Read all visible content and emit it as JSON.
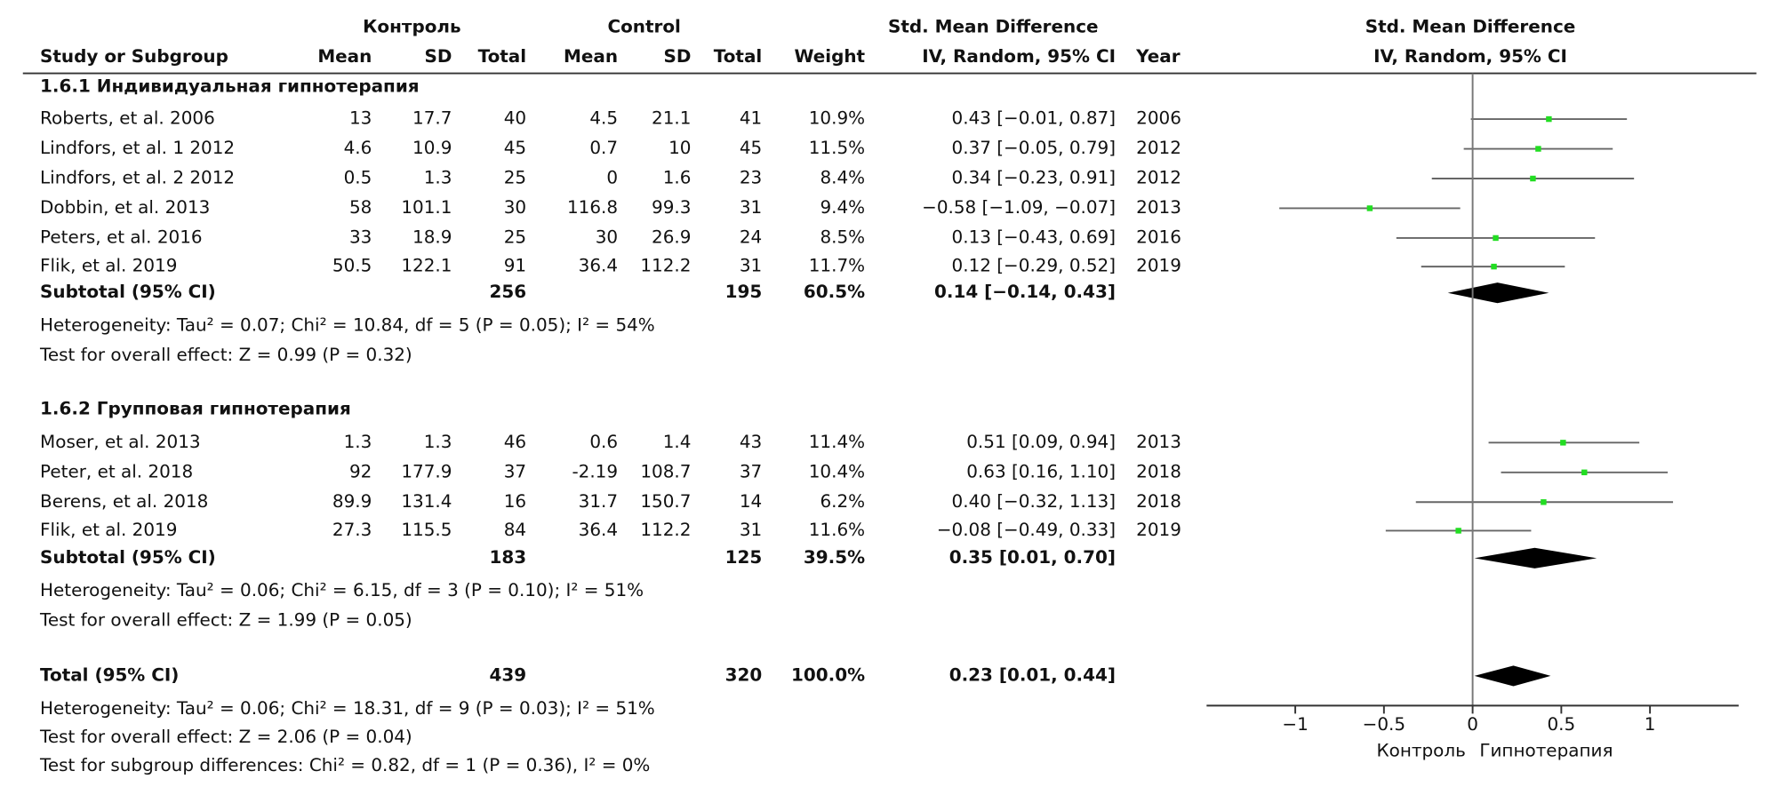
{
  "chart_data": {
    "type": "forest",
    "header": {
      "group1": "Контроль",
      "group2": "Control",
      "effect": "Std. Mean Difference",
      "plot_title": "Std. Mean Difference",
      "plot_subtitle": "IV, Random, 95% CI"
    },
    "columns": [
      "Study or Subgroup",
      "Mean",
      "SD",
      "Total",
      "Mean",
      "SD",
      "Total",
      "Weight",
      "IV, Random, 95% CI",
      "Year"
    ],
    "subgroups": [
      {
        "title": "1.6.1 Индивидуальная гипнотерапия",
        "studies": [
          {
            "name": "Roberts, et al. 2006",
            "mean1": 13,
            "sd1": 17.7,
            "n1": 40,
            "mean2": 4.5,
            "sd2": 21.1,
            "n2": 41,
            "weight": "10.9%",
            "ci_text": "0.43 [−0.01, 0.87]",
            "smd": 0.43,
            "ci_low": -0.01,
            "ci_high": 0.87,
            "year": 2006
          },
          {
            "name": "Lindfors, et al. 1 2012",
            "mean1": 4.6,
            "sd1": 10.9,
            "n1": 45,
            "mean2": 0.7,
            "sd2": 10,
            "n2": 45,
            "weight": "11.5%",
            "ci_text": "0.37 [−0.05, 0.79]",
            "smd": 0.37,
            "ci_low": -0.05,
            "ci_high": 0.79,
            "year": 2012
          },
          {
            "name": "Lindfors, et al. 2 2012",
            "mean1": 0.5,
            "sd1": 1.3,
            "n1": 25,
            "mean2": 0,
            "sd2": 1.6,
            "n2": 23,
            "weight": "8.4%",
            "ci_text": "0.34 [−0.23, 0.91]",
            "smd": 0.34,
            "ci_low": -0.23,
            "ci_high": 0.91,
            "year": 2012
          },
          {
            "name": "Dobbin, et al. 2013",
            "mean1": 58,
            "sd1": 101.1,
            "n1": 30,
            "mean2": 116.8,
            "sd2": 99.3,
            "n2": 31,
            "weight": "9.4%",
            "ci_text": "−0.58 [−1.09, −0.07]",
            "smd": -0.58,
            "ci_low": -1.09,
            "ci_high": -0.07,
            "year": 2013
          },
          {
            "name": "Peters, et al. 2016",
            "mean1": 33,
            "sd1": 18.9,
            "n1": 25,
            "mean2": 30,
            "sd2": 26.9,
            "n2": 24,
            "weight": "8.5%",
            "ci_text": "0.13 [−0.43, 0.69]",
            "smd": 0.13,
            "ci_low": -0.43,
            "ci_high": 0.69,
            "year": 2016
          },
          {
            "name": "Flik, et al. 2019",
            "mean1": 50.5,
            "sd1": 122.1,
            "n1": 91,
            "mean2": 36.4,
            "sd2": 112.2,
            "n2": 31,
            "weight": "11.7%",
            "ci_text": "0.12 [−0.29, 0.52]",
            "smd": 0.12,
            "ci_low": -0.29,
            "ci_high": 0.52,
            "year": 2019
          }
        ],
        "subtotal": {
          "label": "Subtotal (95% CI)",
          "n1": 256,
          "n2": 195,
          "weight": "60.5%",
          "ci_text": "0.14 [−0.14, 0.43]",
          "smd": 0.14,
          "ci_low": -0.14,
          "ci_high": 0.43
        },
        "heterogeneity": "Heterogeneity: Tau² = 0.07; Chi² = 10.84, df = 5 (P = 0.05); I² = 54%",
        "overall": "Test for overall effect: Z = 0.99 (P = 0.32)"
      },
      {
        "title": "1.6.2 Групповая гипнотерапия",
        "studies": [
          {
            "name": "Moser, et al. 2013",
            "mean1": 1.3,
            "sd1": 1.3,
            "n1": 46,
            "mean2": 0.6,
            "sd2": 1.4,
            "n2": 43,
            "weight": "11.4%",
            "ci_text": "0.51 [0.09, 0.94]",
            "smd": 0.51,
            "ci_low": 0.09,
            "ci_high": 0.94,
            "year": 2013
          },
          {
            "name": "Peter, et al. 2018",
            "mean1": 92,
            "sd1": 177.9,
            "n1": 37,
            "mean2": -2.19,
            "sd2": 108.7,
            "n2": 37,
            "weight": "10.4%",
            "ci_text": "0.63 [0.16, 1.10]",
            "smd": 0.63,
            "ci_low": 0.16,
            "ci_high": 1.1,
            "year": 2018
          },
          {
            "name": "Berens, et al. 2018",
            "mean1": 89.9,
            "sd1": 131.4,
            "n1": 16,
            "mean2": 31.7,
            "sd2": 150.7,
            "n2": 14,
            "weight": "6.2%",
            "ci_text": "0.40 [−0.32, 1.13]",
            "smd": 0.4,
            "ci_low": -0.32,
            "ci_high": 1.13,
            "year": 2018
          },
          {
            "name": "Flik, et al. 2019",
            "mean1": 27.3,
            "sd1": 115.5,
            "n1": 84,
            "mean2": 36.4,
            "sd2": 112.2,
            "n2": 31,
            "weight": "11.6%",
            "ci_text": "−0.08 [−0.49, 0.33]",
            "smd": -0.08,
            "ci_low": -0.49,
            "ci_high": 0.33,
            "year": 2019
          }
        ],
        "subtotal": {
          "label": "Subtotal (95% CI)",
          "n1": 183,
          "n2": 125,
          "weight": "39.5%",
          "ci_text": "0.35 [0.01, 0.70]",
          "smd": 0.35,
          "ci_low": 0.01,
          "ci_high": 0.7
        },
        "heterogeneity": "Heterogeneity: Tau² = 0.06; Chi² = 6.15, df = 3 (P = 0.10); I² = 51%",
        "overall": "Test for overall effect: Z = 1.99 (P = 0.05)"
      }
    ],
    "total": {
      "label": "Total (95% CI)",
      "n1": 439,
      "n2": 320,
      "weight": "100.0%",
      "ci_text": "0.23 [0.01, 0.44]",
      "smd": 0.23,
      "ci_low": 0.01,
      "ci_high": 0.44
    },
    "total_notes": [
      "Heterogeneity: Tau² = 0.06; Chi² = 18.31, df = 9 (P = 0.03); I² = 51%",
      "Test for overall effect: Z = 2.06 (P = 0.04)",
      "Test for subgroup differences: Chi² = 0.82, df = 1 (P = 0.36), I² = 0%"
    ],
    "xlim": [
      -1.5,
      1.5
    ],
    "xticks": [
      {
        "value": -1,
        "label": "−1"
      },
      {
        "value": -0.5,
        "label": "−0.5"
      },
      0,
      0.5,
      1
    ],
    "xlabel_left": "Контроль",
    "xlabel_right": "Гипнотерапия",
    "marker_color": "#22dd22"
  }
}
